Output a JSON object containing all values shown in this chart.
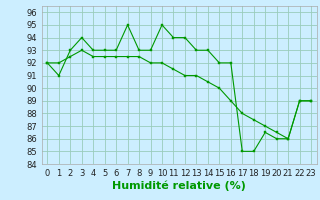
{
  "xlabel": "Humidité relative (%)",
  "background_color": "#cceeff",
  "grid_color": "#99ccbb",
  "line_color": "#009900",
  "marker_color": "#009900",
  "xlim": [
    -0.5,
    23.5
  ],
  "ylim": [
    84,
    96.5
  ],
  "yticks": [
    84,
    85,
    86,
    87,
    88,
    89,
    90,
    91,
    92,
    93,
    94,
    95,
    96
  ],
  "xticks": [
    0,
    1,
    2,
    3,
    4,
    5,
    6,
    7,
    8,
    9,
    10,
    11,
    12,
    13,
    14,
    15,
    16,
    17,
    18,
    19,
    20,
    21,
    22,
    23
  ],
  "series1_x": [
    0,
    1,
    2,
    3,
    4,
    5,
    6,
    7,
    8,
    9,
    10,
    11,
    12,
    13,
    14,
    15,
    16,
    17,
    18,
    19,
    20,
    21,
    22,
    23
  ],
  "series1_y": [
    92.0,
    91.0,
    93.0,
    94.0,
    93.0,
    93.0,
    93.0,
    95.0,
    93.0,
    93.0,
    95.0,
    94.0,
    94.0,
    93.0,
    93.0,
    92.0,
    92.0,
    85.0,
    85.0,
    86.5,
    86.0,
    86.0,
    89.0,
    89.0
  ],
  "series2_x": [
    0,
    1,
    2,
    3,
    4,
    5,
    6,
    7,
    8,
    9,
    10,
    11,
    12,
    13,
    14,
    15,
    16,
    17,
    18,
    19,
    20,
    21,
    22,
    23
  ],
  "series2_y": [
    92.0,
    92.0,
    92.5,
    93.0,
    92.5,
    92.5,
    92.5,
    92.5,
    92.5,
    92.0,
    92.0,
    91.5,
    91.0,
    91.0,
    90.5,
    90.0,
    89.0,
    88.0,
    87.5,
    87.0,
    86.5,
    86.0,
    89.0,
    89.0
  ],
  "xlabel_fontsize": 8,
  "tick_fontsize": 6
}
